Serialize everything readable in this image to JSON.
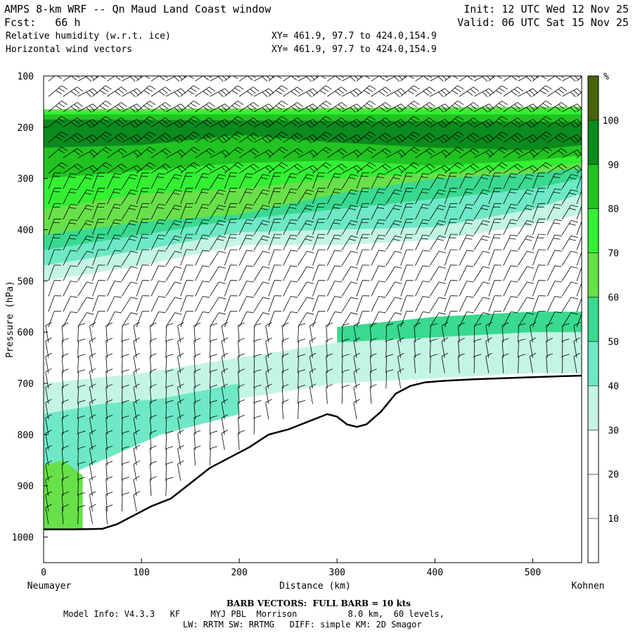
{
  "header": {
    "title": "AMPS 8-km WRF -- Qn Maud Land Coast window",
    "init": "Init: 12 UTC Wed 12 Nov 25",
    "fcst": "Fcst:   66 h",
    "valid": "Valid: 06 UTC Sat 15 Nov 25",
    "field1": "Relative humidity (w.r.t. ice)",
    "field2": "Horizontal wind vectors",
    "xy1": "XY= 461.9, 97.7 to 424.0,154.9",
    "xy2": "XY= 461.9, 97.7 to 424.0,154.9"
  },
  "footer": {
    "barb_note": "BARB VECTORS:  FULL BARB = 10 kts",
    "model_info_1": "Model Info: V4.3.3   KF      MYJ PBL  Morrison          8.0 km,  60 levels,",
    "model_info_2": "LW: RRTM SW: RRTMG   DIFF: simple KM: 2D Smagor"
  },
  "chart_data": {
    "type": "cross-section",
    "title": "Relative humidity (w.r.t. ice) and horizontal wind vectors",
    "xlabel": "Distance (km)",
    "ylabel": "Pressure (hPa)",
    "xlim": [
      0,
      550
    ],
    "ylim": [
      1050,
      100
    ],
    "x_ticks": [
      0,
      100,
      200,
      300,
      400,
      500
    ],
    "y_ticks": [
      100,
      200,
      300,
      400,
      500,
      600,
      700,
      800,
      900,
      1000
    ],
    "x_end_labels": {
      "left": "Neumayer",
      "right": "Kohnen"
    },
    "colorbar": {
      "unit": "%",
      "ticks": [
        10,
        20,
        30,
        40,
        50,
        60,
        70,
        80,
        90,
        100
      ],
      "levels": [
        {
          "min": 0,
          "max": 30,
          "color": "#ffffff"
        },
        {
          "min": 30,
          "max": 40,
          "color": "#c4f5e4"
        },
        {
          "min": 40,
          "max": 50,
          "color": "#6ee8c6"
        },
        {
          "min": 50,
          "max": 60,
          "color": "#39d98f"
        },
        {
          "min": 60,
          "max": 70,
          "color": "#68e04a"
        },
        {
          "min": 70,
          "max": 80,
          "color": "#33f033"
        },
        {
          "min": 80,
          "max": 90,
          "color": "#21c321"
        },
        {
          "min": 90,
          "max": 100,
          "color": "#0b8a1e"
        },
        {
          "min": 100,
          "max": 110,
          "color": "#47650d"
        }
      ]
    },
    "terrain": {
      "x": [
        0,
        30,
        60,
        75,
        90,
        110,
        130,
        150,
        170,
        190,
        210,
        230,
        250,
        270,
        290,
        300,
        310,
        320,
        330,
        345,
        360,
        375,
        390,
        410,
        440,
        470,
        500,
        530,
        550
      ],
      "p": [
        985,
        985,
        984,
        975,
        960,
        940,
        925,
        895,
        865,
        845,
        825,
        800,
        790,
        775,
        760,
        765,
        780,
        785,
        780,
        755,
        720,
        705,
        698,
        695,
        692,
        690,
        688,
        686,
        685
      ]
    },
    "rh_bands": [
      {
        "level": 30,
        "upper": [
          [
            0,
            170
          ],
          [
            550,
            170
          ]
        ],
        "lower": [
          [
            0,
            500
          ],
          [
            100,
            470
          ],
          [
            200,
            430
          ],
          [
            300,
            430
          ],
          [
            400,
            420
          ],
          [
            500,
            390
          ],
          [
            550,
            370
          ]
        ]
      },
      {
        "level": 40,
        "upper": [
          [
            0,
            170
          ],
          [
            550,
            170
          ]
        ],
        "lower": [
          [
            0,
            470
          ],
          [
            100,
            440
          ],
          [
            200,
            405
          ],
          [
            300,
            400
          ],
          [
            400,
            395
          ],
          [
            500,
            360
          ],
          [
            550,
            330
          ]
        ]
      },
      {
        "level": 50,
        "upper": [
          [
            0,
            165
          ],
          [
            550,
            165
          ]
        ],
        "lower": [
          [
            0,
            440
          ],
          [
            100,
            410
          ],
          [
            200,
            380
          ],
          [
            300,
            360
          ],
          [
            400,
            340
          ],
          [
            500,
            320
          ],
          [
            550,
            300
          ]
        ]
      },
      {
        "level": 60,
        "upper": [
          [
            0,
            165
          ],
          [
            550,
            160
          ]
        ],
        "lower": [
          [
            0,
            410
          ],
          [
            100,
            385
          ],
          [
            200,
            370
          ],
          [
            300,
            330
          ],
          [
            400,
            300
          ],
          [
            500,
            290
          ],
          [
            550,
            280
          ]
        ]
      },
      {
        "level": 70,
        "upper": [
          [
            0,
            170
          ],
          [
            550,
            165
          ]
        ],
        "lower": [
          [
            0,
            360
          ],
          [
            100,
            330
          ],
          [
            200,
            320
          ],
          [
            300,
            300
          ],
          [
            400,
            290
          ],
          [
            500,
            280
          ],
          [
            550,
            270
          ]
        ]
      },
      {
        "level": 80,
        "upper": [
          [
            0,
            175
          ],
          [
            550,
            175
          ]
        ],
        "lower": [
          [
            0,
            300
          ],
          [
            100,
            285
          ],
          [
            200,
            270
          ],
          [
            300,
            265
          ],
          [
            400,
            275
          ],
          [
            500,
            265
          ],
          [
            550,
            255
          ]
        ]
      },
      {
        "level": 90,
        "upper": [
          [
            0,
            185
          ],
          [
            550,
            190
          ]
        ],
        "lower": [
          [
            0,
            240
          ],
          [
            100,
            235
          ],
          [
            200,
            215
          ],
          [
            300,
            230
          ],
          [
            400,
            240
          ],
          [
            500,
            245
          ],
          [
            550,
            235
          ]
        ]
      },
      {
        "level": 30,
        "upper": [
          [
            0,
            700
          ],
          [
            100,
            680
          ],
          [
            200,
            650
          ],
          [
            300,
            620
          ],
          [
            400,
            590
          ],
          [
            500,
            560
          ],
          [
            550,
            560
          ]
        ],
        "lower": [
          [
            0,
            830
          ],
          [
            100,
            760
          ],
          [
            200,
            730
          ],
          [
            300,
            700
          ],
          [
            400,
            690
          ],
          [
            500,
            680
          ],
          [
            550,
            680
          ]
        ]
      },
      {
        "level": 40,
        "upper": [
          [
            0,
            760
          ],
          [
            60,
            740
          ],
          [
            120,
            730
          ],
          [
            200,
            700
          ]
        ],
        "lower": [
          [
            0,
            900
          ],
          [
            60,
            850
          ],
          [
            120,
            800
          ],
          [
            200,
            760
          ]
        ]
      },
      {
        "level": 50,
        "upper": [
          [
            300,
            590
          ],
          [
            400,
            570
          ],
          [
            500,
            560
          ],
          [
            550,
            560
          ]
        ],
        "lower": [
          [
            300,
            620
          ],
          [
            400,
            610
          ],
          [
            500,
            600
          ],
          [
            550,
            600
          ]
        ]
      },
      {
        "level": 60,
        "upper": [
          [
            0,
            860
          ],
          [
            20,
            850
          ],
          [
            40,
            880
          ]
        ],
        "lower": [
          [
            0,
            985
          ],
          [
            20,
            985
          ],
          [
            40,
            985
          ]
        ]
      }
    ],
    "wind_columns_x": [
      5,
      20,
      35,
      50,
      65,
      80,
      95,
      110,
      125,
      140,
      155,
      170,
      185,
      200,
      215,
      230,
      245,
      260,
      275,
      290,
      305,
      320,
      335,
      350,
      365,
      380,
      395,
      410,
      425,
      440,
      455,
      470,
      485,
      500,
      515,
      530,
      545
    ],
    "wind_levels_p": [
      110,
      140,
      170,
      200,
      230,
      260,
      290,
      320,
      350,
      380,
      410,
      440,
      470,
      500,
      530,
      560,
      590,
      620,
      650,
      680,
      710,
      740,
      770,
      800,
      830,
      860,
      890,
      920,
      950,
      975
    ]
  }
}
